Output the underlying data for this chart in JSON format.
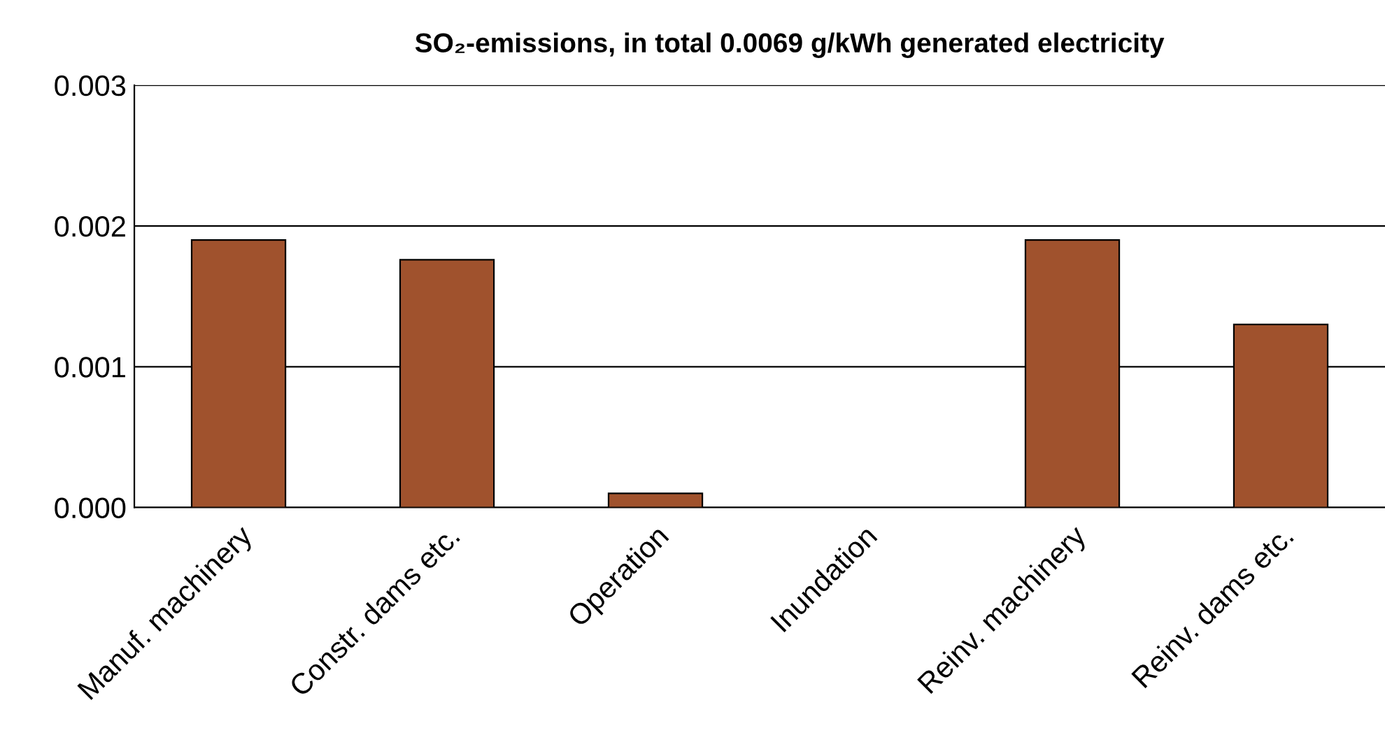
{
  "chart_data": {
    "type": "bar",
    "title": "SO₂-emissions, in total 0.0069 g/kWh generated electricity",
    "categories": [
      "Manuf. machinery",
      "Constr. dams etc.",
      "Operation",
      "Inundation",
      "Reinv. machinery",
      "Reinv. dams etc."
    ],
    "values": [
      0.0019,
      0.00176,
      0.0001,
      0,
      0.0019,
      0.0013
    ],
    "color": "#a0522d",
    "ylim": [
      0,
      0.003
    ],
    "yticks": [
      {
        "value": 0,
        "label": "0.000"
      },
      {
        "value": 0.001,
        "label": "0.001"
      },
      {
        "value": 0.002,
        "label": "0.002"
      },
      {
        "value": 0.003,
        "label": "0.003"
      }
    ],
    "grid": "y"
  }
}
